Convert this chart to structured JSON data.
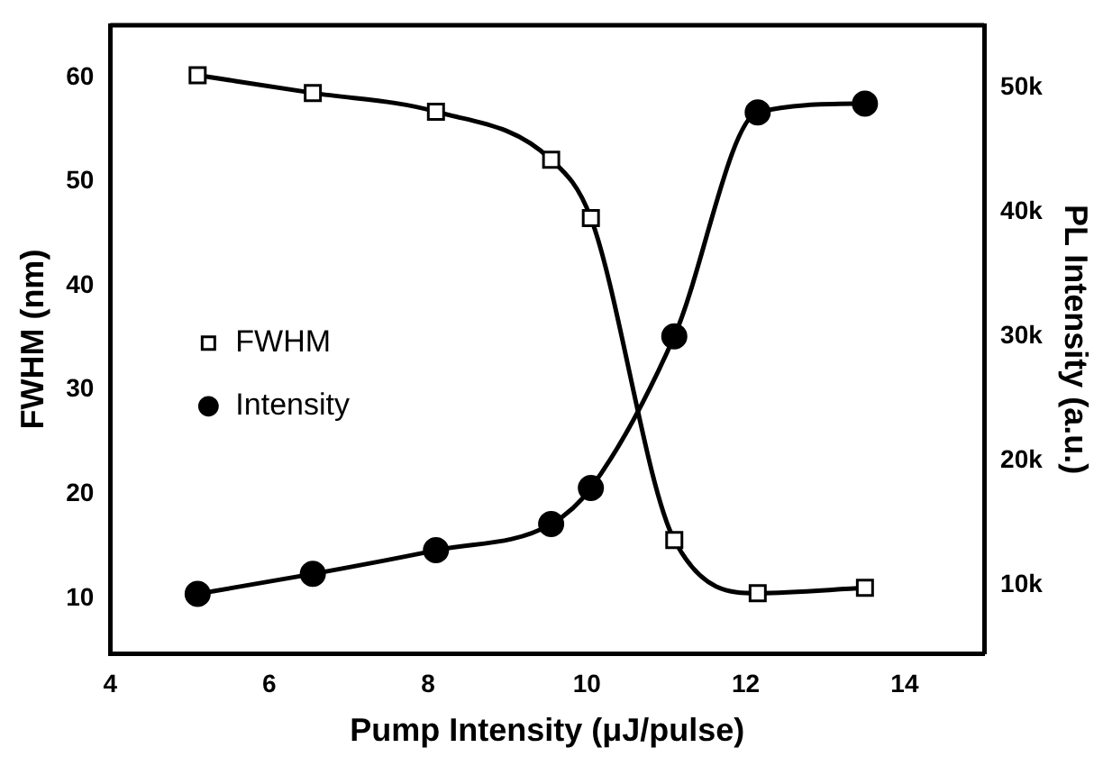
{
  "chart_data": {
    "type": "line",
    "xlabel": "Pump Intensity (μJ/pulse)",
    "ylabel": "FWHM (nm)",
    "y2label": "PL Intensity (a.u.)",
    "xlim": [
      4,
      15
    ],
    "xticks": [
      4,
      6,
      8,
      10,
      12,
      14
    ],
    "ylim": [
      4.7,
      65
    ],
    "yticks": [
      10,
      20,
      30,
      40,
      50,
      60
    ],
    "y2lim": [
      4500,
      55000
    ],
    "y2ticks": [
      {
        "value": 10000,
        "label": "10k"
      },
      {
        "value": 20000,
        "label": "20k"
      },
      {
        "value": 30000,
        "label": "30k"
      },
      {
        "value": 40000,
        "label": "40k"
      },
      {
        "value": 50000,
        "label": "50k"
      }
    ],
    "legend": "left",
    "grid": false,
    "line_style": "solid",
    "series": [
      {
        "name": "FWHM",
        "color": "#000000",
        "marker": "square",
        "x": [
          5.1,
          6.55,
          8.1,
          9.55,
          10.05,
          11.1,
          12.15,
          13.5
        ],
        "values": [
          60.2,
          58.5,
          56.7,
          52.1,
          46.5,
          15.6,
          10.5,
          11.0
        ]
      },
      {
        "name": "Intensity",
        "color": "#000000",
        "marker": "circle",
        "axis": "y2",
        "x": [
          5.1,
          6.55,
          8.1,
          9.55,
          10.05,
          11.1,
          12.15,
          13.5
        ],
        "values": [
          9300,
          10900,
          12800,
          14900,
          17800,
          30000,
          48000,
          48700
        ]
      }
    ]
  }
}
